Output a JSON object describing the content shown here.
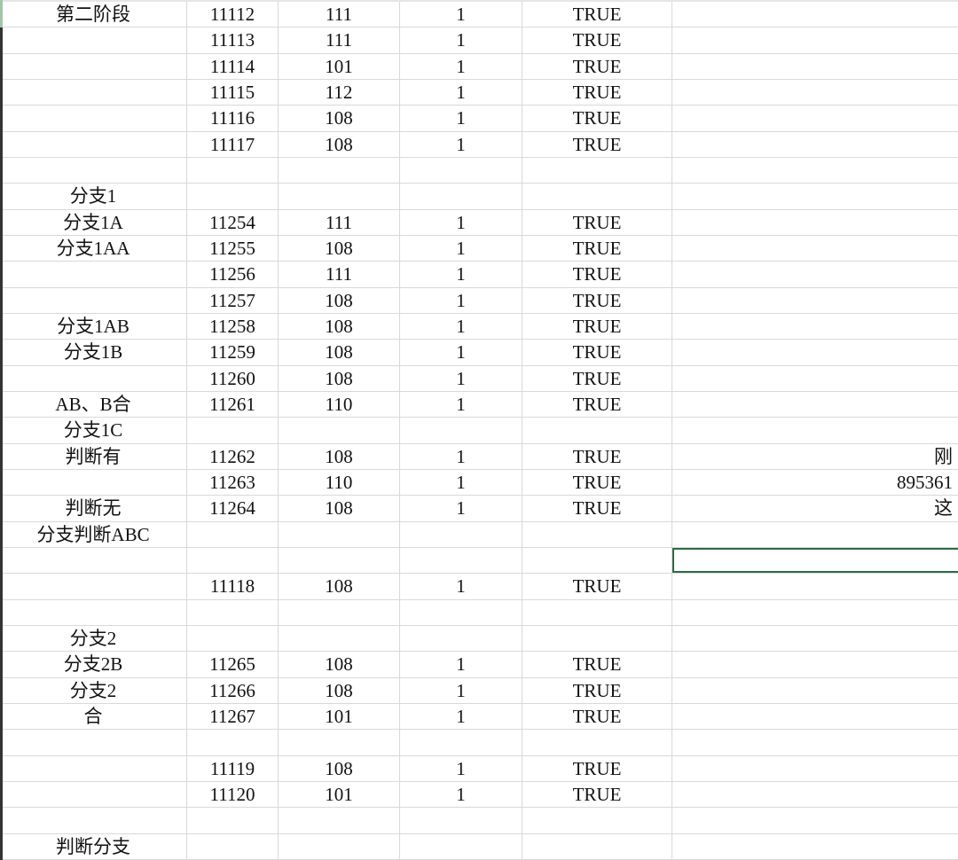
{
  "sheet": {
    "selected_row": 21,
    "selected_col": 5,
    "selection_color": "#2e6b45",
    "rows": [
      [
        "第二阶段",
        "11112",
        "111",
        "1",
        "TRUE",
        ""
      ],
      [
        "",
        "11113",
        "111",
        "1",
        "TRUE",
        ""
      ],
      [
        "",
        "11114",
        "101",
        "1",
        "TRUE",
        ""
      ],
      [
        "",
        "11115",
        "112",
        "1",
        "TRUE",
        ""
      ],
      [
        "",
        "11116",
        "108",
        "1",
        "TRUE",
        ""
      ],
      [
        "",
        "11117",
        "108",
        "1",
        "TRUE",
        ""
      ],
      [
        "",
        "",
        "",
        "",
        "",
        ""
      ],
      [
        "分支1",
        "",
        "",
        "",
        "",
        ""
      ],
      [
        "分支1A",
        "11254",
        "111",
        "1",
        "TRUE",
        ""
      ],
      [
        "分支1AA",
        "11255",
        "108",
        "1",
        "TRUE",
        ""
      ],
      [
        "",
        "11256",
        "111",
        "1",
        "TRUE",
        ""
      ],
      [
        "",
        "11257",
        "108",
        "1",
        "TRUE",
        ""
      ],
      [
        "分支1AB",
        "11258",
        "108",
        "1",
        "TRUE",
        ""
      ],
      [
        "分支1B",
        "11259",
        "108",
        "1",
        "TRUE",
        ""
      ],
      [
        "",
        "11260",
        "108",
        "1",
        "TRUE",
        ""
      ],
      [
        "AB、B合",
        "11261",
        "110",
        "1",
        "TRUE",
        ""
      ],
      [
        "分支1C",
        "",
        "",
        "",
        "",
        ""
      ],
      [
        "判断有",
        "11262",
        "108",
        "1",
        "TRUE",
        "刚"
      ],
      [
        "",
        "11263",
        "110",
        "1",
        "TRUE",
        "895361"
      ],
      [
        "判断无",
        "11264",
        "108",
        "1",
        "TRUE",
        "这"
      ],
      [
        "分支判断ABC",
        "",
        "",
        "",
        "",
        ""
      ],
      [
        "",
        "",
        "",
        "",
        "",
        ""
      ],
      [
        "",
        "11118",
        "108",
        "1",
        "TRUE",
        ""
      ],
      [
        "",
        "",
        "",
        "",
        "",
        ""
      ],
      [
        "分支2",
        "",
        "",
        "",
        "",
        ""
      ],
      [
        "分支2B",
        "11265",
        "108",
        "1",
        "TRUE",
        ""
      ],
      [
        "分支2",
        "11266",
        "108",
        "1",
        "TRUE",
        ""
      ],
      [
        "合",
        "11267",
        "101",
        "1",
        "TRUE",
        ""
      ],
      [
        "",
        "",
        "",
        "",
        "",
        ""
      ],
      [
        "",
        "11119",
        "108",
        "1",
        "TRUE",
        ""
      ],
      [
        "",
        "11120",
        "101",
        "1",
        "TRUE",
        ""
      ],
      [
        "",
        "",
        "",
        "",
        "",
        ""
      ],
      [
        "判断分支",
        "",
        "",
        "",
        "",
        ""
      ]
    ]
  }
}
